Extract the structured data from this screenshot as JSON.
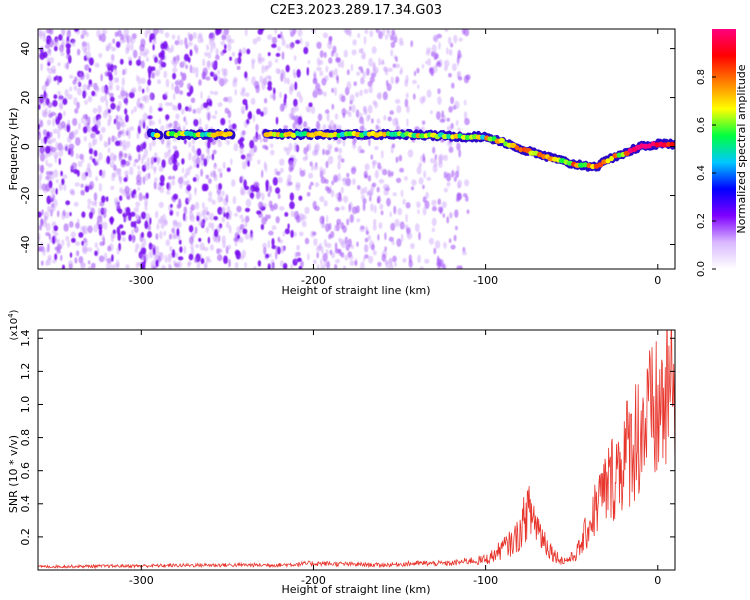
{
  "figure": {
    "title": "C2E3.2023.289.17.34.G03"
  },
  "chart_data": [
    {
      "type": "heatmap",
      "title": "C2E3.2023.289.17.34.G03",
      "xlabel": "Height of straight line (km)",
      "ylabel": "Frequency (Hz)",
      "xlim": [
        -360,
        10
      ],
      "ylim": [
        -50,
        48
      ],
      "xticks": [
        -300,
        -200,
        -100,
        0
      ],
      "yticks": [
        -40,
        -20,
        0,
        20,
        40
      ],
      "grid": false,
      "ridge": {
        "description_points_x": [
          -295,
          -240,
          -200,
          -150,
          -110,
          -100,
          -90,
          -80,
          -70,
          -60,
          -50,
          -40,
          -35,
          -30,
          -25,
          -20,
          -10,
          0,
          10
        ],
        "description_points_y": [
          5,
          5,
          5,
          5,
          4,
          4,
          2,
          -1,
          -3,
          -5,
          -7,
          -8,
          -8,
          -6,
          -4,
          -3,
          0,
          1,
          1
        ]
      },
      "colorbar": {
        "label": "Normalized spectral amplitude",
        "range": [
          0,
          1
        ],
        "ticks": [
          "0.0",
          "0.2",
          "0.4",
          "0.6",
          "0.8"
        ],
        "colormap": [
          "#ffffff",
          "#d9b8ff",
          "#8000ff",
          "#0000ff",
          "#00c8ff",
          "#00ff40",
          "#ffff00",
          "#ff8000",
          "#ff0000",
          "#ff0080"
        ]
      }
    },
    {
      "type": "line",
      "xlabel": "Height of straight line (km)",
      "ylabel": "SNR (10 * v/v)",
      "y_scale_label": "(x10",
      "y_scale_exp": "4",
      "y_scale_close": ")",
      "xlim": [
        -360,
        10
      ],
      "ylim": [
        0,
        1.45
      ],
      "xticks": [
        -300,
        -200,
        -100,
        0
      ],
      "yticks": [
        "0.2",
        "0.4",
        "0.6",
        "0.8",
        "1.0",
        "1.2",
        "1.4"
      ],
      "series": [
        {
          "color": "#e8352c",
          "x": [
            -360,
            -300,
            -260,
            -220,
            -200,
            -160,
            -140,
            -120,
            -100,
            -95,
            -90,
            -85,
            -80,
            -76,
            -72,
            -68,
            -65,
            -60,
            -55,
            -50,
            -45,
            -40,
            -35,
            -30,
            -25,
            -20,
            -15,
            -10,
            -5,
            0,
            5,
            10
          ],
          "y": [
            0.02,
            0.025,
            0.03,
            0.03,
            0.04,
            0.03,
            0.04,
            0.04,
            0.07,
            0.1,
            0.15,
            0.18,
            0.25,
            0.4,
            0.35,
            0.25,
            0.18,
            0.1,
            0.06,
            0.08,
            0.15,
            0.3,
            0.45,
            0.55,
            0.65,
            0.75,
            0.85,
            0.95,
            1.0,
            1.05,
            1.15,
            1.3
          ]
        }
      ]
    }
  ]
}
